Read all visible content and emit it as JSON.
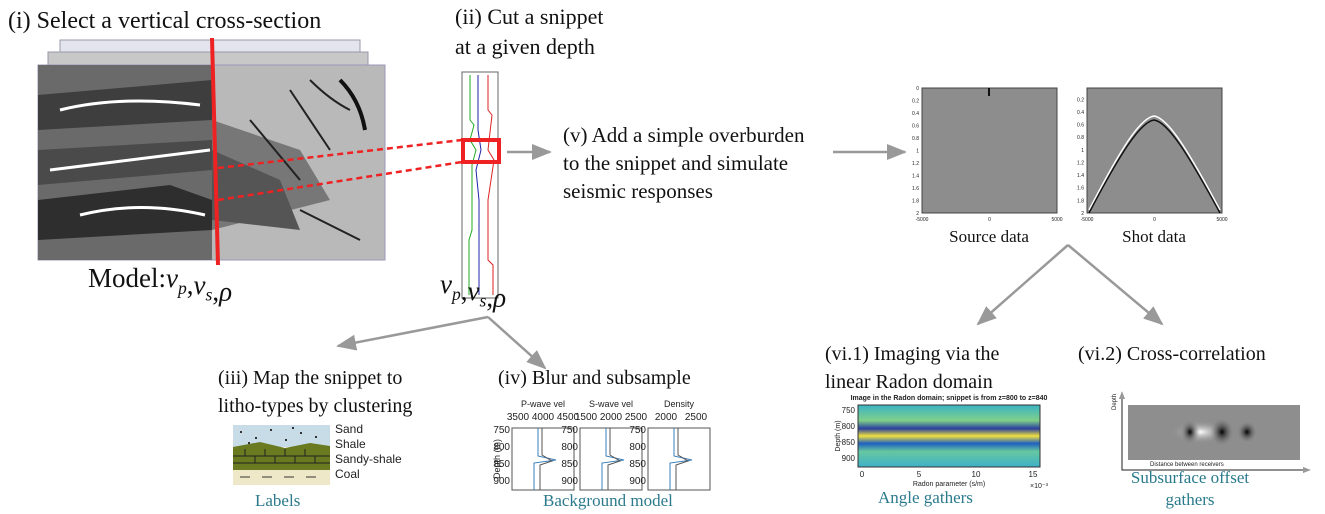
{
  "step_i": {
    "title": "(i) Select a vertical cross-section",
    "model_label": {
      "prefix": "Model:",
      "separator": ",",
      "vars": [
        {
          "base": "v",
          "sub": "p"
        },
        {
          "base": "v",
          "sub": "s"
        },
        {
          "base": "ρ"
        }
      ]
    }
  },
  "step_ii": {
    "title_lines": [
      "(ii) Cut a snippet",
      "at a given depth"
    ],
    "vars": {
      "separator": ",",
      "items": [
        {
          "base": "v",
          "sub": "p"
        },
        {
          "base": "v",
          "sub": "s"
        },
        {
          "base": "ρ"
        }
      ]
    }
  },
  "step_v": {
    "lines": [
      "(v) Add a simple overburden",
      "to the snippet and simulate",
      "seismic responses"
    ],
    "panels": [
      {
        "caption": "Source data",
        "yticks": [
          "0",
          "0.2",
          "0.4",
          "0.6",
          "0.8",
          "1",
          "1.2",
          "1.4",
          "1.6",
          "1.8",
          "2"
        ],
        "xticks": [
          "-5000",
          "0",
          "5000"
        ]
      },
      {
        "caption": "Shot data",
        "yticks": [
          "0.2",
          "0.4",
          "0.6",
          "0.8",
          "1",
          "1.2",
          "1.4",
          "1.6",
          "1.8",
          "2"
        ],
        "xticks": [
          "-5000",
          "0",
          "5000"
        ]
      }
    ]
  },
  "step_iii": {
    "title_lines": [
      "(iii) Map the snippet to",
      "litho-types by clustering"
    ],
    "legend": [
      "Sand",
      "Shale",
      "Sandy-shale",
      "Coal"
    ],
    "caption": "Labels"
  },
  "step_iv": {
    "title": "(iv) Blur and subsample",
    "plots": [
      {
        "title": "P-wave vel",
        "xticks": [
          "3500",
          "4000",
          "4500"
        ]
      },
      {
        "title": "S-wave vel",
        "xticks": [
          "1500",
          "2000",
          "2500"
        ]
      },
      {
        "title": "Density",
        "xticks": [
          "2000",
          "2500"
        ]
      }
    ],
    "yticks": [
      "750",
      "800",
      "850",
      "900"
    ],
    "ylabel": "Depth (m)",
    "caption": "Background model"
  },
  "step_vi_1": {
    "title_lines": [
      "(vi.1) Imaging via the",
      "linear Radon domain"
    ],
    "plot_title": "Image in the Radon domain; snippet is from z=800 to z=840",
    "ylabel": "Depth (m)",
    "yticks": [
      "750",
      "800",
      "850",
      "900"
    ],
    "xticks": [
      "0",
      "5",
      "10",
      "15"
    ],
    "xlabel": "Radon parameter (s/m)",
    "xscale": "×10⁻³",
    "caption": "Angle gathers"
  },
  "step_vi_2": {
    "title": "(vi.2) Cross-correlation",
    "ylabel": "Depth",
    "xlabel": "Distance between receivers",
    "caption_lines": [
      "Subsurface offset",
      "gathers"
    ]
  }
}
